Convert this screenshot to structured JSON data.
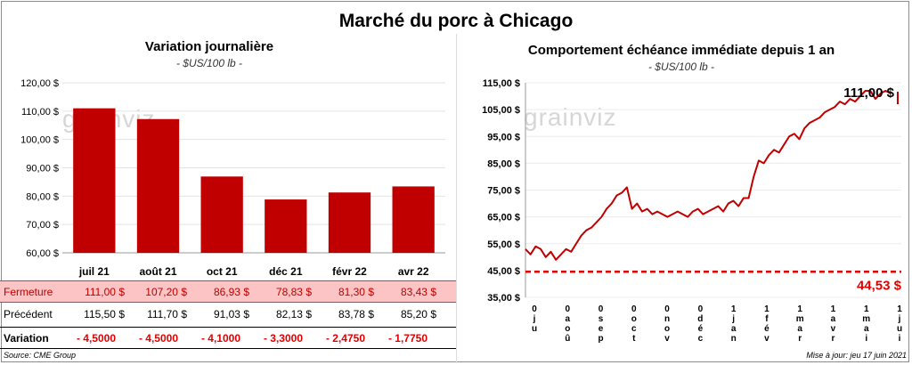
{
  "title": "Marché du porc à Chicago",
  "left": {
    "subtitle": "Variation  journalière",
    "unit": "- $US/100 lb -",
    "watermark": "grainviz",
    "table": {
      "fermeture_label": "Fermeture",
      "precedent_label": "Précédent",
      "variation_label": "Variation",
      "fermeture": [
        "111,00  $",
        "107,20  $",
        "86,93  $",
        "78,83  $",
        "81,30  $",
        "83,43  $"
      ],
      "precedent": [
        "115,50  $",
        "111,70  $",
        "91,03  $",
        "82,13  $",
        "83,78  $",
        "85,20  $"
      ],
      "variation": [
        "- 4,5000",
        "- 4,5000",
        "- 4,1000",
        "- 3,3000",
        "- 2,4750",
        "- 1,7750"
      ]
    }
  },
  "right": {
    "subtitle": "Comportement  échéance immédiate depuis 1 an",
    "unit": "- $US/100 lb -",
    "watermark": "grainviz",
    "current_label": "111,00 $",
    "ref_label": "44,53 $"
  },
  "colors": {
    "bar": "#c00000",
    "line": "#c00000",
    "ref_line": "#e00000"
  },
  "source": "Source: CME Group",
  "updated": "Mise à jour: jeu 17 juin 2021",
  "chart_data": [
    {
      "type": "bar",
      "title": "Variation  journalière",
      "ylabel": "$US/100 lb",
      "categories": [
        "juil 21",
        "août 21",
        "oct 21",
        "déc 21",
        "févr 22",
        "avr 22"
      ],
      "values": [
        111.0,
        107.2,
        86.93,
        78.83,
        81.3,
        83.43
      ],
      "ylim": [
        60,
        120
      ],
      "yticks": [
        60,
        70,
        80,
        90,
        100,
        110,
        120
      ],
      "ytick_labels": [
        "60,00 $",
        "70,00 $",
        "80,00 $",
        "90,00 $",
        "100,00 $",
        "110,00 $",
        "120,00 $"
      ]
    },
    {
      "type": "line",
      "title": "Comportement  échéance immédiate depuis 1 an",
      "ylabel": "$US/100 lb",
      "ylim": [
        35,
        115
      ],
      "yticks": [
        35,
        45,
        55,
        65,
        75,
        85,
        95,
        105,
        115
      ],
      "ytick_labels": [
        "35,00 $",
        "45,00 $",
        "55,00 $",
        "65,00 $",
        "75,00 $",
        "85,00 $",
        "95,00 $",
        "105,00 $",
        "115,00 $"
      ],
      "xtick_labels": [
        "0 j u",
        "0 a o û",
        "0 s e p",
        "0 o c t",
        "0 n o v",
        "0 d é c",
        "1 j a n",
        "1 f é v",
        "1 m a r",
        "1 a v r",
        "1 m a i",
        "1 j u i"
      ],
      "x": [
        0,
        5,
        10,
        15,
        20,
        25,
        30,
        35,
        40,
        45,
        50,
        55,
        60,
        65,
        70,
        75,
        80,
        85,
        90,
        95,
        100,
        105,
        110,
        115,
        120,
        125,
        130,
        135,
        140,
        145,
        150,
        155,
        160,
        165,
        170,
        175,
        180,
        185,
        190,
        195,
        200,
        205,
        210,
        215,
        220,
        225,
        230,
        235,
        240,
        245,
        250,
        255,
        260,
        265,
        270,
        275,
        280,
        285,
        290,
        295,
        300,
        305,
        310,
        315,
        320,
        325,
        330,
        335,
        340,
        345,
        350,
        355,
        360
      ],
      "values": [
        53,
        51,
        54,
        53,
        50,
        52,
        49,
        51,
        53,
        52,
        55,
        58,
        60,
        61,
        63,
        65,
        68,
        70,
        73,
        74,
        76,
        68,
        70,
        67,
        68,
        66,
        67,
        66,
        65,
        66,
        67,
        66,
        65,
        67,
        68,
        66,
        67,
        68,
        69,
        67,
        70,
        71,
        69,
        72,
        72,
        80,
        86,
        85,
        88,
        90,
        89,
        92,
        95,
        96,
        94,
        98,
        100,
        101,
        102,
        104,
        105,
        106,
        108,
        107,
        109,
        108,
        110,
        112,
        112,
        109,
        111,
        112,
        111
      ],
      "reference_line": 44.53,
      "current": 111.0
    }
  ]
}
